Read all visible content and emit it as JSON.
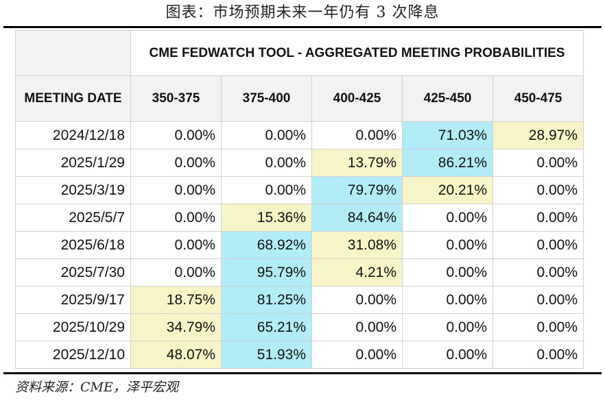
{
  "figure_title": "图表：市场预期未来一年仍有 3 次降息",
  "table": {
    "banner": "CME FEDWATCH TOOL - AGGREGATED MEETING PROBABILITIES",
    "date_header": "MEETING DATE",
    "columns": [
      "350-375",
      "375-400",
      "400-425",
      "425-450",
      "450-475"
    ],
    "rows": [
      {
        "date": "2024/12/18",
        "cells": [
          "0.00%",
          "0.00%",
          "0.00%",
          "71.03%",
          "28.97%"
        ]
      },
      {
        "date": "2025/1/29",
        "cells": [
          "0.00%",
          "0.00%",
          "13.79%",
          "86.21%",
          "0.00%"
        ]
      },
      {
        "date": "2025/3/19",
        "cells": [
          "0.00%",
          "0.00%",
          "79.79%",
          "20.21%",
          "0.00%"
        ]
      },
      {
        "date": "2025/5/7",
        "cells": [
          "0.00%",
          "15.36%",
          "84.64%",
          "0.00%",
          "0.00%"
        ]
      },
      {
        "date": "2025/6/18",
        "cells": [
          "0.00%",
          "68.92%",
          "31.08%",
          "0.00%",
          "0.00%"
        ]
      },
      {
        "date": "2025/7/30",
        "cells": [
          "0.00%",
          "95.79%",
          "4.21%",
          "0.00%",
          "0.00%"
        ]
      },
      {
        "date": "2025/9/17",
        "cells": [
          "18.75%",
          "81.25%",
          "0.00%",
          "0.00%",
          "0.00%"
        ]
      },
      {
        "date": "2025/10/29",
        "cells": [
          "34.79%",
          "65.21%",
          "0.00%",
          "0.00%",
          "0.00%"
        ]
      },
      {
        "date": "2025/12/10",
        "cells": [
          "48.07%",
          "51.93%",
          "0.00%",
          "0.00%",
          "0.00%"
        ]
      }
    ]
  },
  "source": "资料来源：CME，泽平宏观",
  "colors": {
    "highest_probability": "#b2ecf7",
    "second_probability": "#f7f4c8",
    "header_fill": "#f2f2f2"
  }
}
